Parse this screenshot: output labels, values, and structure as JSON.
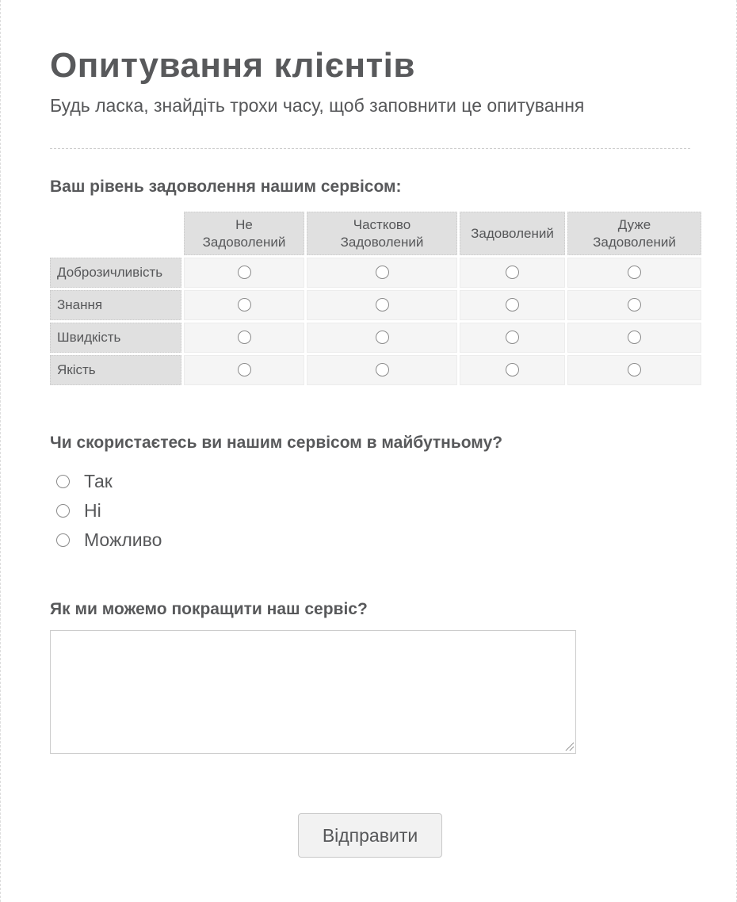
{
  "page": {
    "title": "Опитування клієнтів",
    "subtitle": "Будь ласка, знайдіть трохи часу, щоб заповнити це опитування"
  },
  "matrix_question": {
    "label": "Ваш рівень задоволення нашим сервісом:",
    "columns": [
      "Не Задоволений",
      "Частково Задоволений",
      "Задоволений",
      "Дуже Задоволений"
    ],
    "rows": [
      "Доброзичливість",
      "Знання",
      "Швидкість",
      "Якість"
    ],
    "selected": null
  },
  "future_question": {
    "label": "Чи скористаєтесь ви нашим сервісом в майбутньому?",
    "options": [
      "Так",
      "Ні",
      "Можливо"
    ],
    "selected": null
  },
  "improve_question": {
    "label": "Як ми можемо покращити наш сервіс?",
    "value": ""
  },
  "submit": {
    "label": "Відправити"
  },
  "colors": {
    "text": "#565759",
    "heading": "#58595b",
    "cell-header-bg": "#e0e0e0",
    "cell-body-bg": "#f5f5f5",
    "border-light": "#cccccc",
    "button-bg": "#f2f2f2",
    "edge": "#dddddd"
  }
}
